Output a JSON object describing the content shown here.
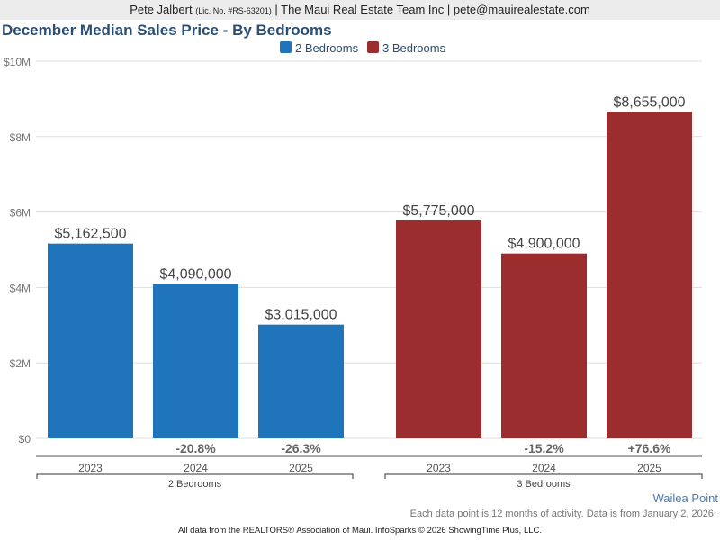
{
  "header": {
    "agent": "Pete Jalbert",
    "license": "(Lic. No. #RS-63201)",
    "rest": "| The Maui Real Estate Team Inc | pete@mauirealestate.com"
  },
  "footer": {
    "location": "Wailea Point",
    "note": "Each data point is 12 months of activity. Data is from January 2, 2026.",
    "source": "All data from the REALTORS® Association of Maui. InfoSparks © 2026 ShowingTime Plus, LLC."
  },
  "chart_data": {
    "type": "bar",
    "title": "December Median Sales Price - By Bedrooms",
    "categories": [
      "2023",
      "2024",
      "2025"
    ],
    "groups": [
      "2 Bedrooms",
      "3 Bedrooms"
    ],
    "legend_position": "top",
    "grid": true,
    "ylim": [
      0,
      10000000
    ],
    "yticks": [
      {
        "v": 0,
        "label": "$0"
      },
      {
        "v": 2000000,
        "label": "$2M"
      },
      {
        "v": 4000000,
        "label": "$4M"
      },
      {
        "v": 6000000,
        "label": "$6M"
      },
      {
        "v": 8000000,
        "label": "$8M"
      },
      {
        "v": 10000000,
        "label": "$10M"
      }
    ],
    "series": [
      {
        "name": "2 Bedrooms",
        "color": "#1f74bb",
        "values": [
          5162500,
          4090000,
          3015000
        ],
        "labels": [
          "$5,162,500",
          "$4,090,000",
          "$3,015,000"
        ],
        "changes": [
          "",
          "-20.8%",
          "-26.3%"
        ]
      },
      {
        "name": "3 Bedrooms",
        "color": "#9b2d2f",
        "values": [
          5775000,
          4900000,
          8655000
        ],
        "labels": [
          "$5,775,000",
          "$4,900,000",
          "$8,655,000"
        ],
        "changes": [
          "",
          "-15.2%",
          "+76.6%"
        ]
      }
    ]
  }
}
